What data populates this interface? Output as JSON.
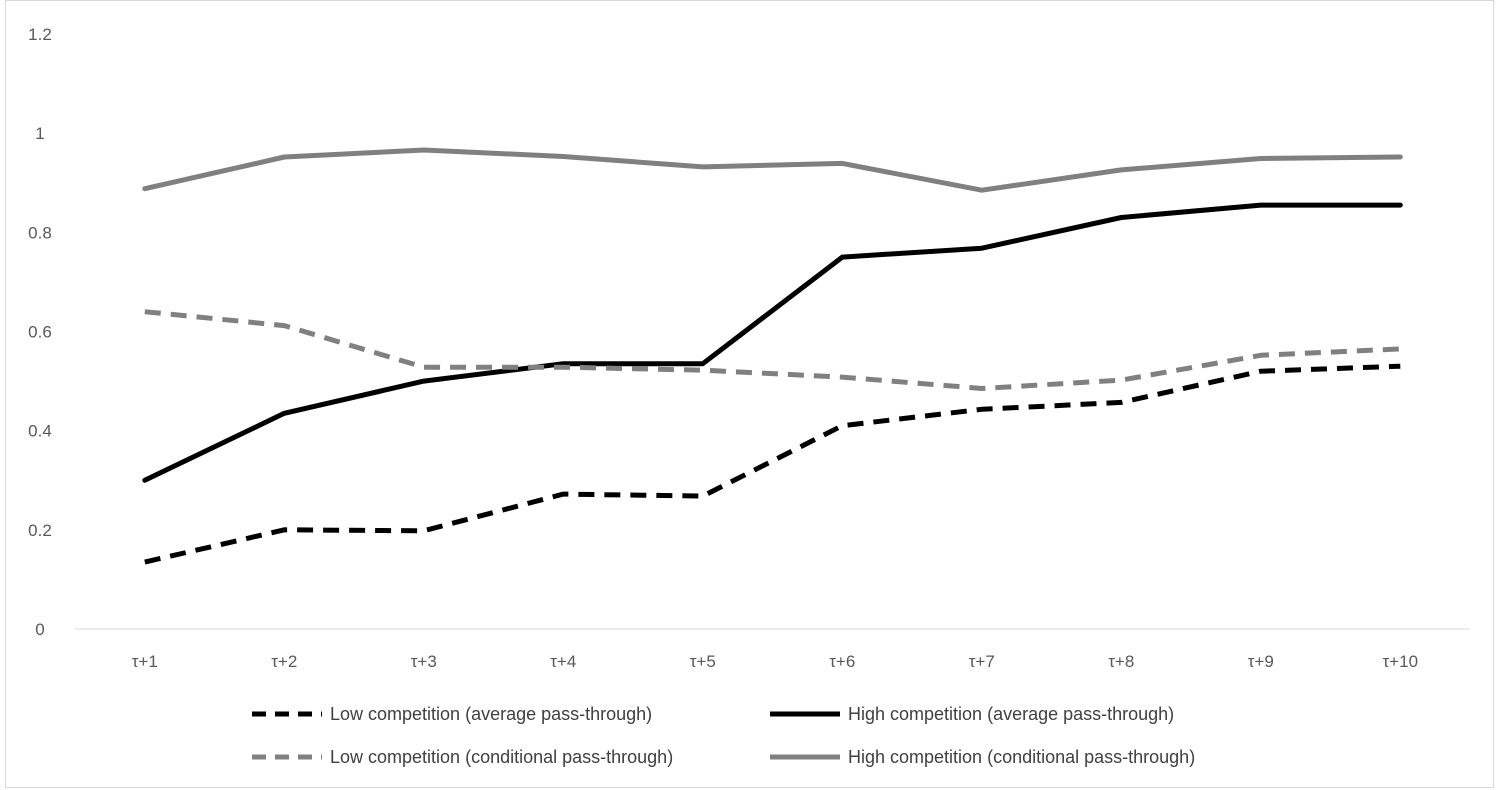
{
  "chart_data": {
    "type": "line",
    "title": "",
    "xlabel": "",
    "ylabel": "",
    "categories": [
      "τ+1",
      "τ+2",
      "τ+3",
      "τ+4",
      "τ+5",
      "τ+6",
      "τ+7",
      "τ+8",
      "τ+9",
      "τ+10"
    ],
    "ylim": [
      0,
      1.2
    ],
    "yticks": [
      "0",
      "0.2",
      "0.4",
      "0.6",
      "0.8",
      "1",
      "1.2"
    ],
    "grid": false,
    "legend_position": "bottom",
    "series": [
      {
        "name": "Low competition (average pass-through)",
        "color": "#000000",
        "style": "dashed",
        "values": [
          0.135,
          0.2,
          0.198,
          0.272,
          0.268,
          0.41,
          0.443,
          0.457,
          0.52,
          0.53
        ]
      },
      {
        "name": "High competition (average pass-through)",
        "color": "#000000",
        "style": "solid",
        "values": [
          0.3,
          0.435,
          0.5,
          0.535,
          0.535,
          0.75,
          0.768,
          0.83,
          0.855,
          0.855
        ]
      },
      {
        "name": "Low competition (conditional pass-through)",
        "color": "#808080",
        "style": "dashed",
        "values": [
          0.64,
          0.612,
          0.528,
          0.528,
          0.522,
          0.508,
          0.485,
          0.502,
          0.552,
          0.565
        ]
      },
      {
        "name": "High competition (conditional pass-through)",
        "color": "#808080",
        "style": "solid",
        "values": [
          0.888,
          0.952,
          0.966,
          0.953,
          0.932,
          0.939,
          0.885,
          0.926,
          0.949,
          0.952
        ]
      }
    ]
  }
}
